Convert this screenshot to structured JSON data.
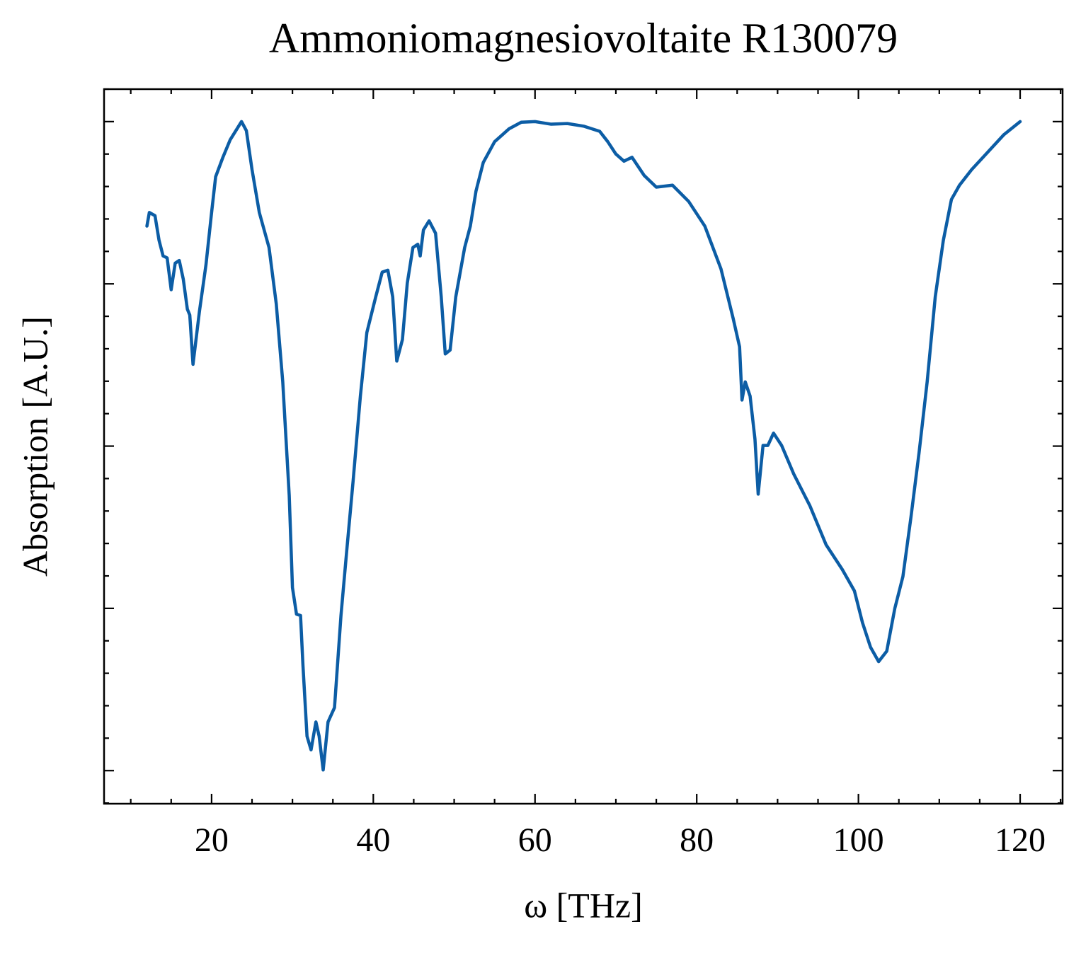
{
  "chart_data": {
    "type": "line",
    "title": "Ammoniomagnesiovoltaite R130079",
    "x_label": "ω [THz]",
    "y_label": "Absorption [A.U.]",
    "x": [
      12,
      12.3,
      13,
      13.5,
      14,
      14.5,
      15,
      15.5,
      16,
      16.5,
      17,
      17.3,
      17.7,
      18.5,
      19.3,
      20,
      20.5,
      21.4,
      22.3,
      23,
      23.7,
      24.3,
      25,
      25.9,
      26.5,
      27.1,
      28,
      28.8,
      29.6,
      30,
      30.5,
      31,
      31.3,
      31.8,
      32.3,
      32.9,
      33.3,
      33.8,
      34.4,
      35.2,
      36,
      36.7,
      37.5,
      38.4,
      39.2,
      40.3,
      41.1,
      41.8,
      42.4,
      42.9,
      43.6,
      44.2,
      44.9,
      45.5,
      45.8,
      46.2,
      46.9,
      47.7,
      48.4,
      48.9,
      49.5,
      50.2,
      51.3,
      52,
      52.7,
      53.6,
      55,
      56.8,
      58.3,
      60,
      62,
      64,
      66,
      68,
      69,
      70,
      71,
      72,
      73.5,
      75,
      77,
      79,
      81,
      83,
      84.5,
      85.3,
      85.6,
      86,
      86.6,
      87.2,
      87.6,
      88.2,
      88.8,
      89.5,
      90.5,
      92,
      94,
      96,
      98,
      99.5,
      100.5,
      101.5,
      102.5,
      103.5,
      104.5,
      105.5,
      106.5,
      107.5,
      108.5,
      109.5,
      110.5,
      111.5,
      112.5,
      114,
      116,
      118,
      120
    ],
    "series": [
      {
        "color": "#0c5da5",
        "values": [
          0.839,
          0.86,
          0.855,
          0.817,
          0.793,
          0.79,
          0.741,
          0.782,
          0.786,
          0.757,
          0.711,
          0.702,
          0.626,
          0.708,
          0.779,
          0.86,
          0.915,
          0.945,
          0.972,
          0.986,
          1.0,
          0.986,
          0.926,
          0.86,
          0.833,
          0.806,
          0.719,
          0.599,
          0.424,
          0.282,
          0.241,
          0.239,
          0.162,
          0.053,
          0.032,
          0.075,
          0.053,
          0.001,
          0.075,
          0.097,
          0.239,
          0.337,
          0.446,
          0.577,
          0.675,
          0.73,
          0.768,
          0.771,
          0.73,
          0.631,
          0.664,
          0.751,
          0.806,
          0.811,
          0.793,
          0.833,
          0.847,
          0.828,
          0.73,
          0.642,
          0.648,
          0.73,
          0.806,
          0.839,
          0.893,
          0.937,
          0.969,
          0.989,
          0.999,
          1.0,
          0.996,
          0.997,
          0.993,
          0.985,
          0.969,
          0.95,
          0.939,
          0.945,
          0.917,
          0.899,
          0.902,
          0.877,
          0.839,
          0.773,
          0.697,
          0.653,
          0.571,
          0.599,
          0.577,
          0.511,
          0.426,
          0.501,
          0.501,
          0.52,
          0.501,
          0.457,
          0.408,
          0.348,
          0.31,
          0.277,
          0.228,
          0.19,
          0.168,
          0.184,
          0.25,
          0.299,
          0.391,
          0.49,
          0.599,
          0.73,
          0.817,
          0.88,
          0.902,
          0.926,
          0.953,
          0.98,
          1.0
        ]
      }
    ],
    "xlim": [
      6.7,
      125.25
    ],
    "xticks": [
      20,
      40,
      60,
      80,
      100,
      120
    ],
    "x_minor_step": 5,
    "ylim": [
      -0.051,
      1.05
    ],
    "yticks": [
      0,
      0.25,
      0.5,
      0.75,
      1
    ],
    "y_minor_step": 0.05,
    "ytick_labels": false,
    "grid": false
  }
}
